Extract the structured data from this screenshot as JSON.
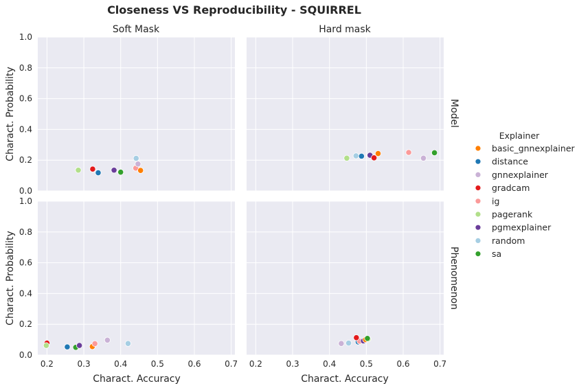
{
  "chart_data": {
    "type": "scatter",
    "title": "Closeness VS Reproducibility - SQUIRREL",
    "xlabel": "Charact. Accuracy",
    "ylabel": "Charact. Probability",
    "xlim": [
      0.175,
      0.71
    ],
    "ylim": [
      0,
      1.0
    ],
    "xticks": [
      "0.2",
      "0.3",
      "0.4",
      "0.5",
      "0.6",
      "0.7"
    ],
    "yticks": [
      "0.0",
      "0.2",
      "0.4",
      "0.6",
      "0.8",
      "1.0"
    ],
    "grid": true,
    "columns": [
      "Soft Mask",
      "Hard mask"
    ],
    "rows": [
      "Model",
      "Phenomenon"
    ],
    "legend": {
      "title": "Explainer",
      "placement": "right",
      "entries": [
        {
          "name": "basic_gnnexplainer",
          "color": "#ff7f00"
        },
        {
          "name": "distance",
          "color": "#1f78b4"
        },
        {
          "name": "gnnexplainer",
          "color": "#cab2d6"
        },
        {
          "name": "gradcam",
          "color": "#e31a1c"
        },
        {
          "name": "ig",
          "color": "#fb9a99"
        },
        {
          "name": "pagerank",
          "color": "#b2df8a"
        },
        {
          "name": "pgmexplainer",
          "color": "#6a3d9a"
        },
        {
          "name": "random",
          "color": "#a6cee3"
        },
        {
          "name": "sa",
          "color": "#33a02c"
        }
      ]
    },
    "panels": [
      {
        "row": "Model",
        "col": "Soft Mask",
        "points": [
          {
            "explainer": "pagerank",
            "x": 0.285,
            "y": 0.135
          },
          {
            "explainer": "gradcam",
            "x": 0.324,
            "y": 0.142
          },
          {
            "explainer": "distance",
            "x": 0.339,
            "y": 0.118
          },
          {
            "explainer": "pgmexplainer",
            "x": 0.382,
            "y": 0.135
          },
          {
            "explainer": "sa",
            "x": 0.4,
            "y": 0.122
          },
          {
            "explainer": "random",
            "x": 0.442,
            "y": 0.212
          },
          {
            "explainer": "ig",
            "x": 0.441,
            "y": 0.148
          },
          {
            "explainer": "gnnexplainer",
            "x": 0.447,
            "y": 0.175
          },
          {
            "explainer": "basic_gnnexplainer",
            "x": 0.454,
            "y": 0.133
          }
        ]
      },
      {
        "row": "Model",
        "col": "Hard mask",
        "points": [
          {
            "explainer": "pagerank",
            "x": 0.447,
            "y": 0.213
          },
          {
            "explainer": "random",
            "x": 0.472,
            "y": 0.228
          },
          {
            "explainer": "distance",
            "x": 0.487,
            "y": 0.226
          },
          {
            "explainer": "pgmexplainer",
            "x": 0.51,
            "y": 0.232
          },
          {
            "explainer": "gradcam",
            "x": 0.521,
            "y": 0.215
          },
          {
            "explainer": "basic_gnnexplainer",
            "x": 0.532,
            "y": 0.243
          },
          {
            "explainer": "ig",
            "x": 0.615,
            "y": 0.25
          },
          {
            "explainer": "gnnexplainer",
            "x": 0.655,
            "y": 0.213
          },
          {
            "explainer": "sa",
            "x": 0.685,
            "y": 0.248
          }
        ]
      },
      {
        "row": "Phenomenon",
        "col": "Soft Mask",
        "points": [
          {
            "explainer": "gradcam",
            "x": 0.2,
            "y": 0.078
          },
          {
            "explainer": "pagerank",
            "x": 0.198,
            "y": 0.062
          },
          {
            "explainer": "distance",
            "x": 0.255,
            "y": 0.053
          },
          {
            "explainer": "sa",
            "x": 0.278,
            "y": 0.05
          },
          {
            "explainer": "pgmexplainer",
            "x": 0.288,
            "y": 0.062
          },
          {
            "explainer": "basic_gnnexplainer",
            "x": 0.323,
            "y": 0.055
          },
          {
            "explainer": "ig",
            "x": 0.33,
            "y": 0.074
          },
          {
            "explainer": "gnnexplainer",
            "x": 0.364,
            "y": 0.097
          },
          {
            "explainer": "random",
            "x": 0.42,
            "y": 0.075
          }
        ]
      },
      {
        "row": "Phenomenon",
        "col": "Hard mask",
        "points": [
          {
            "explainer": "gnnexplainer",
            "x": 0.432,
            "y": 0.075
          },
          {
            "explainer": "random",
            "x": 0.452,
            "y": 0.078
          },
          {
            "explainer": "distance",
            "x": 0.478,
            "y": 0.085
          },
          {
            "explainer": "ig",
            "x": 0.482,
            "y": 0.09
          },
          {
            "explainer": "gradcam",
            "x": 0.473,
            "y": 0.113
          },
          {
            "explainer": "pgmexplainer",
            "x": 0.492,
            "y": 0.092
          },
          {
            "explainer": "basic_gnnexplainer",
            "x": 0.498,
            "y": 0.1
          },
          {
            "explainer": "pagerank",
            "x": 0.505,
            "y": 0.104
          },
          {
            "explainer": "sa",
            "x": 0.503,
            "y": 0.108
          }
        ]
      }
    ]
  }
}
